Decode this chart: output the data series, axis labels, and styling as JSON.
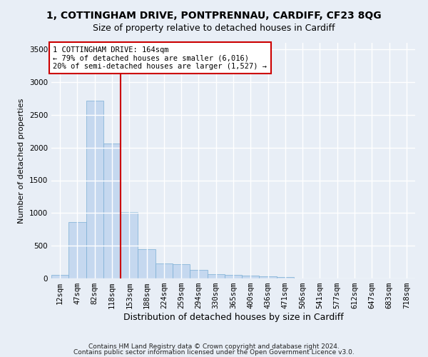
{
  "title_line1": "1, COTTINGHAM DRIVE, PONTPRENNAU, CARDIFF, CF23 8QG",
  "title_line2": "Size of property relative to detached houses in Cardiff",
  "xlabel": "Distribution of detached houses by size in Cardiff",
  "ylabel": "Number of detached properties",
  "footnote1": "Contains HM Land Registry data © Crown copyright and database right 2024.",
  "footnote2": "Contains public sector information licensed under the Open Government Licence v3.0.",
  "bar_labels": [
    "12sqm",
    "47sqm",
    "82sqm",
    "118sqm",
    "153sqm",
    "188sqm",
    "224sqm",
    "259sqm",
    "294sqm",
    "330sqm",
    "365sqm",
    "400sqm",
    "436sqm",
    "471sqm",
    "506sqm",
    "541sqm",
    "577sqm",
    "612sqm",
    "647sqm",
    "683sqm",
    "718sqm"
  ],
  "bar_values": [
    60,
    860,
    2720,
    2060,
    1010,
    450,
    225,
    215,
    135,
    70,
    60,
    40,
    30,
    20,
    5,
    5,
    5,
    5,
    2,
    2,
    2
  ],
  "bar_color": "#c5d8ef",
  "bar_edgecolor": "#7aaed4",
  "vline_x_index": 3.5,
  "vline_color": "#cc0000",
  "annotation_text": "1 COTTINGHAM DRIVE: 164sqm\n← 79% of detached houses are smaller (6,016)\n20% of semi-detached houses are larger (1,527) →",
  "annotation_box_edgecolor": "#cc0000",
  "annotation_box_facecolor": "#ffffff",
  "ylim": [
    0,
    3600
  ],
  "yticks": [
    0,
    500,
    1000,
    1500,
    2000,
    2500,
    3000,
    3500
  ],
  "bg_color": "#e8eef6",
  "plot_bg_color": "#e8eef6",
  "grid_color": "#ffffff",
  "title1_fontsize": 10,
  "title2_fontsize": 9,
  "xlabel_fontsize": 9,
  "ylabel_fontsize": 8,
  "tick_fontsize": 7.5,
  "annotation_fontsize": 7.5,
  "footnote_fontsize": 6.5
}
